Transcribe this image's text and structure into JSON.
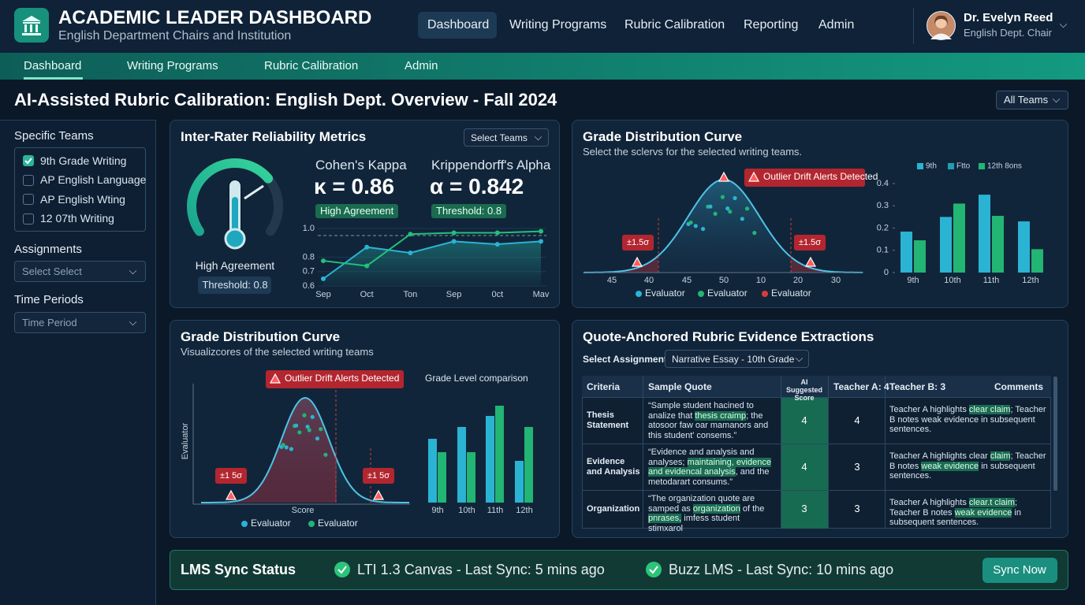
{
  "header": {
    "title": "ACADEMIC LEADER DASHBOARD",
    "subtitle": "English Department Chairs and Institution",
    "nav": [
      "Dashboard",
      "Writing Programs",
      "Rubric Calibration",
      "Reporting",
      "Admin"
    ],
    "user": {
      "name": "Dr. Evelyn Reed",
      "role": "English Dept. Chair"
    }
  },
  "subnav": [
    "Dashboard",
    "Writing Programs",
    "Rubric Calibration",
    "Admin"
  ],
  "page_title": "AI-Assisted Rubric Calibration: English Dept. Overview - Fall 2024",
  "team_filter": "All Teams",
  "sidebar": {
    "teams_label": "Specific Teams",
    "teams": [
      {
        "label": "9th Grade Writing",
        "checked": true
      },
      {
        "label": "AP English Language",
        "checked": false
      },
      {
        "label": "AP English Wting",
        "checked": false
      },
      {
        "label": "12 07th Writing",
        "checked": false
      }
    ],
    "assignments_label": "Assignments",
    "assignments_placeholder": "Select Select",
    "time_label": "Time Periods",
    "time_placeholder": "Time Period"
  },
  "irr": {
    "title": "Inter-Rater Reliability Metrics",
    "select": "Select Teams",
    "gauge_label": "High Agreement",
    "gauge_threshold": "Threshold: 0.8",
    "kappa": {
      "label": "Cohen's Kappa",
      "value": "κ = 0.86",
      "badge": "High Agreement"
    },
    "alpha": {
      "label": "Krippendorff's Alpha",
      "value": "α = 0.842",
      "badge": "Threshold: 0.8"
    },
    "chart": {
      "type": "line",
      "categories": [
        "Sep",
        "Oct",
        "Ton",
        "Sep",
        "0ct",
        "Mav"
      ],
      "ylim": [
        0.6,
        1.0
      ],
      "yticks": [
        0.6,
        0.7,
        0.8,
        {
          "value": 1.0,
          "label": "1.0"
        }
      ],
      "series": [
        {
          "color": "#2bb3d4",
          "values": [
            0.65,
            0.87,
            0.83,
            0.91,
            0.89,
            0.91
          ]
        },
        {
          "color": "#22c07a",
          "values": [
            0.775,
            0.74,
            0.96,
            0.97,
            0.97,
            0.98
          ]
        }
      ]
    }
  },
  "grade_top": {
    "title": "Grade Distribution Curve",
    "subtitle": "Select the sclervs for the selected writing teams.",
    "alert": "Outlier Drift Alerts Detected",
    "sigma_labels": [
      "±1.5σ",
      "±1.5σ"
    ],
    "x_labels": [
      "45",
      "40",
      "45",
      "50",
      "10",
      "20",
      "30"
    ],
    "legend": [
      {
        "name": "Evaluator",
        "color": "#2bb3d4"
      },
      {
        "name": "Evaluator",
        "color": "#22b573"
      },
      {
        "name": "Evaluator",
        "color": "#d63c3c"
      }
    ],
    "bars": {
      "type": "bar",
      "legend": [
        {
          "name": "9th",
          "color": "#2bb3d4"
        },
        {
          "name": "Ftto",
          "color": "#1f9fb0"
        },
        {
          "name": "12th 8ons",
          "color": "#22b573"
        }
      ],
      "categories": [
        "9th",
        "10th",
        "11th",
        "12th"
      ],
      "ylim": [
        0,
        0.4
      ],
      "yticks": [
        0,
        0.1,
        0.2,
        0.3,
        0.4
      ],
      "series": [
        {
          "color": "#2bb3d4",
          "values": [
            0.184,
            0.25,
            0.35,
            0.23
          ]
        },
        {
          "color": "#22b573",
          "values": [
            0.145,
            0.31,
            0.255,
            0.105
          ]
        }
      ]
    }
  },
  "grade_bottom": {
    "title": "Grade Distribution Curve",
    "subtitle": "Visualizcores of the selected writing teams",
    "alert": "Outlier Drift Alerts Detected",
    "sigma_labels": [
      "±1 5σ",
      "±1 5σ"
    ],
    "y_label": "Evaluator",
    "x_label": "Score",
    "legend": [
      {
        "name": "Evaluator",
        "color": "#2bb3d4"
      },
      {
        "name": "Evaluator",
        "color": "#22b573"
      }
    ],
    "bars": {
      "type": "bar",
      "title": "Grade Level comparison",
      "categories": [
        "9th",
        "10th",
        "11th",
        "12th"
      ],
      "ylim": [
        0,
        130
      ],
      "series": [
        {
          "color": "#2bb3d4",
          "values": [
            81,
            96,
            110,
            53
          ]
        },
        {
          "color": "#22b573",
          "values": [
            64,
            64,
            123,
            96
          ]
        }
      ]
    }
  },
  "evidence": {
    "title": "Quote-Anchored Rubric Evidence Extractions",
    "select_label": "Select Assignment:",
    "select": "Narrative Essay - 10th Grade",
    "columns": [
      "Criteria",
      "Sample Quote",
      "AI Suggested Score",
      "Teacher A: 4",
      "Teacher B: 3",
      "Comments"
    ],
    "rows": [
      {
        "criteria": "Thesis Statement",
        "quote": [
          "“Sample student hacined to analize that ",
          "thesis craimp",
          "; the atosoor faw oar mamanors and this student' consems.”"
        ],
        "ai": 4,
        "teacher_a": 4,
        "comment": [
          "Teacher A highlights ",
          "clear claim",
          "; Teacher B notes weak evidence in subsequent sentences."
        ]
      },
      {
        "criteria": "Evidence and Analysis",
        "quote": [
          "“Evidence and analysis and analyses; ",
          "maintaining, evidence and evidencal analysis",
          ", and the metodarart consums.”"
        ],
        "ai": 4,
        "teacher_a": 3,
        "comment": [
          "Teacher A highlights clear ",
          "claim",
          "; Teacher B notes ",
          "weak evidence",
          " in subsequent sentences."
        ]
      },
      {
        "criteria": "Organization",
        "quote": [
          "“The organization quote are samped as ",
          "organization",
          " of the ",
          "pnrases,",
          " imfess student stimxarol"
        ],
        "ai": 3,
        "teacher_a": 3,
        "comment": [
          "Teacher A highlights ",
          "clear.t claim",
          "; Teacher B notes ",
          "weak evidence",
          " in subsequent sentences."
        ]
      }
    ]
  },
  "lms": {
    "title": "LMS Sync Status",
    "items": [
      "LTI 1.3 Canvas - Last Sync: 5 mins ago",
      "Buzz LMS - Last Sync: 10 mins ago"
    ],
    "button": "Sync Now"
  }
}
